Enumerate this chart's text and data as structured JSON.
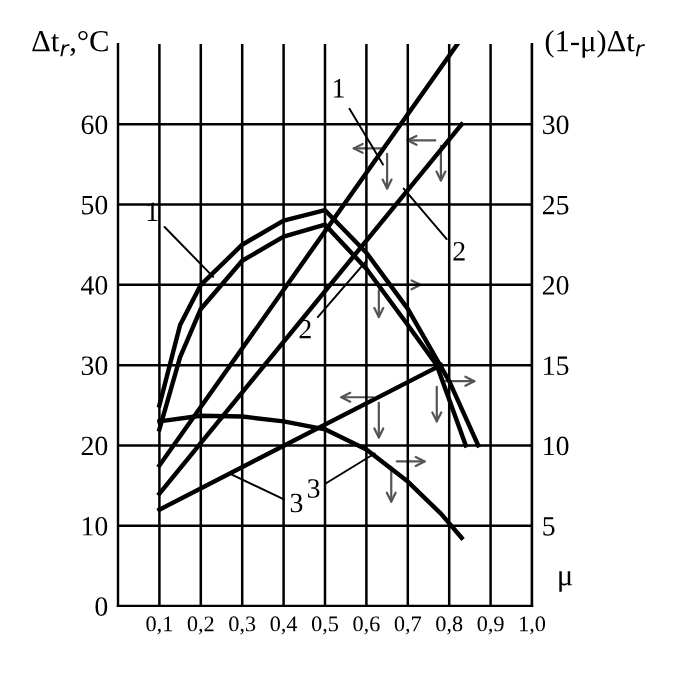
{
  "chart_data": {
    "type": "line",
    "ylabel": "Δt$_{r}$,°C",
    "y2label": "(1-μ)Δt$_{r}$",
    "xlabel": "μ",
    "xlim": [
      0,
      1.0
    ],
    "ylim": [
      0,
      70
    ],
    "y2lim": [
      0,
      35
    ],
    "xticks": [
      {
        "value": 0.1,
        "label": "0,1"
      },
      {
        "value": 0.2,
        "label": "0,2"
      },
      {
        "value": 0.3,
        "label": "0,3"
      },
      {
        "value": 0.4,
        "label": "0,4"
      },
      {
        "value": 0.5,
        "label": "0,5"
      },
      {
        "value": 0.6,
        "label": "0,6"
      },
      {
        "value": 0.7,
        "label": "0,7"
      },
      {
        "value": 0.8,
        "label": "0,8"
      },
      {
        "value": 0.9,
        "label": "0,9"
      },
      {
        "value": 1.0,
        "label": "1,0"
      }
    ],
    "yticks": [
      0,
      10,
      20,
      30,
      40,
      50,
      60
    ],
    "y2ticks": [
      5,
      10,
      15,
      20,
      25,
      30
    ],
    "grid": true,
    "marker": "none",
    "line_style": "solid",
    "series": [
      {
        "color": "#000000",
        "x": [
          0.1,
          0.15,
          0.2,
          0.3,
          0.4,
          0.5,
          0.6,
          0.7,
          0.8,
          0.87
        ],
        "values": [
          25,
          35,
          40,
          45,
          48,
          49.3,
          44,
          37,
          28,
          20
        ]
      },
      {
        "color": "#000000",
        "x": [
          0.1,
          0.15,
          0.2,
          0.3,
          0.4,
          0.5,
          0.6,
          0.7,
          0.77,
          0.84
        ],
        "values": [
          22,
          31,
          37,
          43,
          46,
          47.5,
          42,
          35,
          30,
          20
        ]
      },
      {
        "color": "#000000",
        "x": [
          0.1,
          0.82
        ],
        "values": [
          17.5,
          70
        ]
      },
      {
        "color": "#000000",
        "x": [
          0.1,
          0.83
        ],
        "values": [
          14,
          60
        ]
      },
      {
        "color": "#000000",
        "x": [
          0.1,
          0.78
        ],
        "values": [
          12,
          30
        ]
      },
      {
        "color": "#000000",
        "x": [
          0.1,
          0.2,
          0.3,
          0.4,
          0.5,
          0.6,
          0.7,
          0.78,
          0.83
        ],
        "values": [
          23,
          23.7,
          23.6,
          23,
          22,
          19.5,
          15.5,
          11.5,
          8.5
        ]
      }
    ],
    "annotations": [
      {
        "text": "1",
        "x": 0.23,
        "y": 41
      },
      {
        "text": "1",
        "x": 0.64,
        "y": 55
      },
      {
        "text": "2",
        "x": 0.69,
        "y": 52
      },
      {
        "text": "2",
        "x": 0.6,
        "y": 43
      },
      {
        "text": "3",
        "x": 0.27,
        "y": 16.5
      },
      {
        "text": "3",
        "x": 0.62,
        "y": 19
      }
    ]
  }
}
